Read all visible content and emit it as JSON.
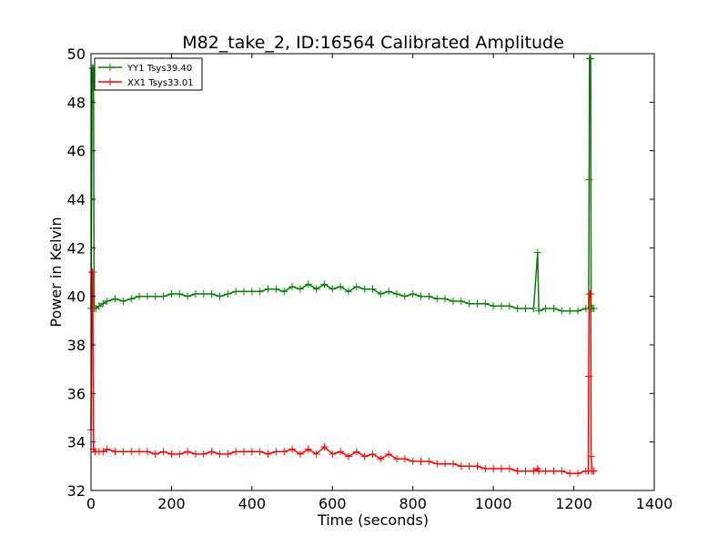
{
  "chart_data": {
    "type": "line",
    "title": "M82_take_2, ID:16564 Calibrated Amplitude",
    "xlabel": "Time (seconds)",
    "ylabel": "Power in Kelvin",
    "xlim": [
      0,
      1400
    ],
    "ylim": [
      32,
      50
    ],
    "xticks": [
      0,
      200,
      400,
      600,
      800,
      1000,
      1200,
      1400
    ],
    "yticks": [
      32,
      34,
      36,
      38,
      40,
      42,
      44,
      46,
      48,
      50
    ],
    "grid": false,
    "legend_position": "top-left",
    "marker": "+",
    "series": [
      {
        "name": "YY1 Tsys39.40",
        "color": "#008000",
        "points": [
          [
            0,
            39.5
          ],
          [
            3,
            49.4
          ],
          [
            6,
            49.4
          ],
          [
            8,
            39.5
          ],
          [
            12,
            39.5
          ],
          [
            20,
            39.6
          ],
          [
            30,
            39.7
          ],
          [
            40,
            39.8
          ],
          [
            60,
            39.9
          ],
          [
            80,
            39.8
          ],
          [
            100,
            39.9
          ],
          [
            120,
            40.0
          ],
          [
            140,
            40.0
          ],
          [
            160,
            40.0
          ],
          [
            180,
            40.0
          ],
          [
            200,
            40.1
          ],
          [
            220,
            40.1
          ],
          [
            240,
            40.0
          ],
          [
            260,
            40.1
          ],
          [
            280,
            40.1
          ],
          [
            300,
            40.1
          ],
          [
            320,
            40.0
          ],
          [
            340,
            40.1
          ],
          [
            360,
            40.2
          ],
          [
            380,
            40.2
          ],
          [
            400,
            40.2
          ],
          [
            420,
            40.2
          ],
          [
            440,
            40.3
          ],
          [
            460,
            40.3
          ],
          [
            480,
            40.2
          ],
          [
            500,
            40.4
          ],
          [
            520,
            40.3
          ],
          [
            540,
            40.5
          ],
          [
            560,
            40.3
          ],
          [
            580,
            40.5
          ],
          [
            600,
            40.3
          ],
          [
            620,
            40.4
          ],
          [
            640,
            40.2
          ],
          [
            660,
            40.4
          ],
          [
            680,
            40.3
          ],
          [
            700,
            40.3
          ],
          [
            720,
            40.1
          ],
          [
            740,
            40.2
          ],
          [
            760,
            40.1
          ],
          [
            780,
            40.0
          ],
          [
            800,
            40.1
          ],
          [
            820,
            40.0
          ],
          [
            840,
            40.0
          ],
          [
            860,
            39.9
          ],
          [
            880,
            39.9
          ],
          [
            900,
            39.8
          ],
          [
            920,
            39.8
          ],
          [
            940,
            39.7
          ],
          [
            960,
            39.7
          ],
          [
            980,
            39.7
          ],
          [
            1000,
            39.6
          ],
          [
            1020,
            39.6
          ],
          [
            1040,
            39.6
          ],
          [
            1060,
            39.5
          ],
          [
            1080,
            39.5
          ],
          [
            1100,
            39.5
          ],
          [
            1110,
            41.8
          ],
          [
            1113,
            39.4
          ],
          [
            1130,
            39.5
          ],
          [
            1150,
            39.5
          ],
          [
            1170,
            39.4
          ],
          [
            1190,
            39.4
          ],
          [
            1210,
            39.4
          ],
          [
            1230,
            39.5
          ],
          [
            1237,
            39.5
          ],
          [
            1238,
            44.8
          ],
          [
            1239,
            49.8
          ],
          [
            1240,
            49.8
          ],
          [
            1242,
            49.8
          ],
          [
            1243,
            39.5
          ],
          [
            1246,
            39.5
          ],
          [
            1250,
            39.5
          ]
        ]
      },
      {
        "name": "XX1 Tsys33.01",
        "color": "#ff0000",
        "points": [
          [
            0,
            34.5
          ],
          [
            2,
            41.0
          ],
          [
            4,
            41.0
          ],
          [
            6,
            33.7
          ],
          [
            10,
            33.6
          ],
          [
            20,
            33.6
          ],
          [
            30,
            33.6
          ],
          [
            40,
            33.7
          ],
          [
            60,
            33.6
          ],
          [
            80,
            33.6
          ],
          [
            100,
            33.6
          ],
          [
            120,
            33.6
          ],
          [
            140,
            33.6
          ],
          [
            160,
            33.5
          ],
          [
            180,
            33.6
          ],
          [
            200,
            33.5
          ],
          [
            220,
            33.5
          ],
          [
            240,
            33.6
          ],
          [
            260,
            33.5
          ],
          [
            280,
            33.5
          ],
          [
            300,
            33.6
          ],
          [
            320,
            33.5
          ],
          [
            340,
            33.5
          ],
          [
            360,
            33.6
          ],
          [
            380,
            33.6
          ],
          [
            400,
            33.6
          ],
          [
            420,
            33.6
          ],
          [
            440,
            33.5
          ],
          [
            460,
            33.6
          ],
          [
            480,
            33.6
          ],
          [
            500,
            33.7
          ],
          [
            520,
            33.5
          ],
          [
            540,
            33.7
          ],
          [
            560,
            33.5
          ],
          [
            580,
            33.8
          ],
          [
            600,
            33.5
          ],
          [
            620,
            33.6
          ],
          [
            640,
            33.4
          ],
          [
            660,
            33.6
          ],
          [
            680,
            33.4
          ],
          [
            700,
            33.5
          ],
          [
            720,
            33.3
          ],
          [
            740,
            33.5
          ],
          [
            760,
            33.3
          ],
          [
            780,
            33.3
          ],
          [
            800,
            33.2
          ],
          [
            820,
            33.2
          ],
          [
            840,
            33.2
          ],
          [
            860,
            33.1
          ],
          [
            880,
            33.1
          ],
          [
            900,
            33.1
          ],
          [
            920,
            33.0
          ],
          [
            940,
            33.0
          ],
          [
            960,
            33.0
          ],
          [
            980,
            32.9
          ],
          [
            1000,
            32.9
          ],
          [
            1020,
            32.9
          ],
          [
            1040,
            32.9
          ],
          [
            1060,
            32.8
          ],
          [
            1080,
            32.8
          ],
          [
            1100,
            32.8
          ],
          [
            1110,
            32.9
          ],
          [
            1113,
            32.8
          ],
          [
            1130,
            32.8
          ],
          [
            1150,
            32.8
          ],
          [
            1170,
            32.8
          ],
          [
            1190,
            32.7
          ],
          [
            1210,
            32.7
          ],
          [
            1230,
            32.8
          ],
          [
            1236,
            32.8
          ],
          [
            1237,
            36.7
          ],
          [
            1238,
            40.1
          ],
          [
            1240,
            40.1
          ],
          [
            1242,
            40.1
          ],
          [
            1243,
            33.4
          ],
          [
            1245,
            32.8
          ],
          [
            1250,
            32.8
          ]
        ]
      }
    ]
  }
}
